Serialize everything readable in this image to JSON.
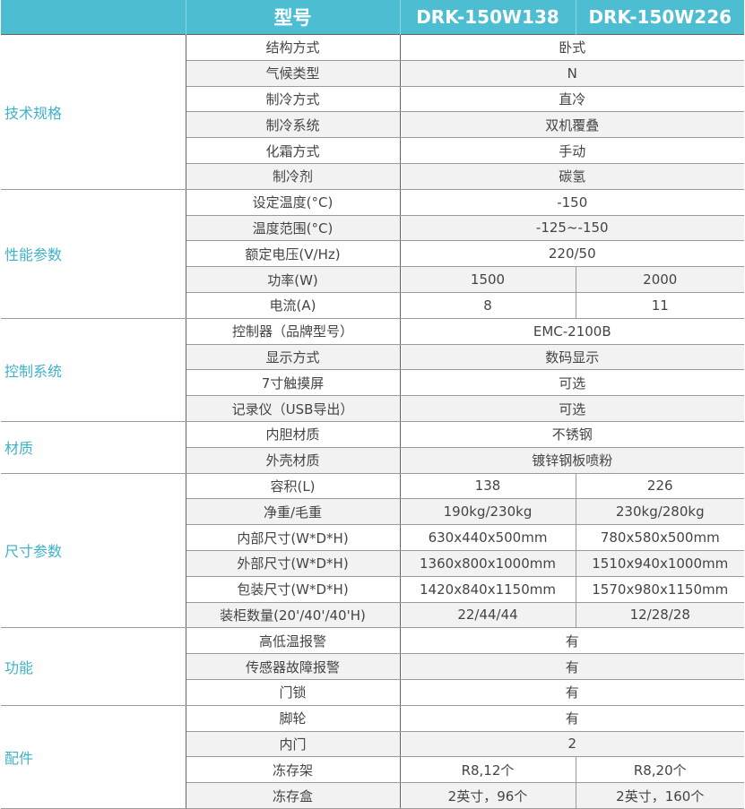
{
  "header": {
    "category": "",
    "label": "型号",
    "models": [
      "DRK-150W138",
      "DRK-150W226"
    ]
  },
  "colors": {
    "header_bg": "#4dbdd2",
    "category_text": "#3fb2c8",
    "stripe": "#f2f2f2"
  },
  "groups": [
    {
      "category": "技术规格",
      "rows": [
        {
          "label": "结构方式",
          "value": "卧式"
        },
        {
          "label": "气候类型",
          "value": "N"
        },
        {
          "label": "制冷方式",
          "value": "直冷"
        },
        {
          "label": "制冷系统",
          "value": "双机覆叠"
        },
        {
          "label": "化霜方式",
          "value": "手动"
        },
        {
          "label": "制冷剂",
          "value": "碳氢"
        }
      ]
    },
    {
      "category": "性能参数",
      "rows": [
        {
          "label": "设定温度(°C)",
          "value": "-150"
        },
        {
          "label": "温度范围(°C)",
          "value": "-125~-150"
        },
        {
          "label": "额定电压(V/Hz)",
          "value": "220/50"
        },
        {
          "label": "功率(W)",
          "values": [
            "1500",
            "2000"
          ]
        },
        {
          "label": "电流(A)",
          "values": [
            "8",
            "11"
          ]
        }
      ]
    },
    {
      "category": "控制系统",
      "rows": [
        {
          "label": "控制器（品牌型号）",
          "value": "EMC-2100B"
        },
        {
          "label": "显示方式",
          "value": "数码显示"
        },
        {
          "label": "7寸触摸屏",
          "value": "可选"
        },
        {
          "label": "记录仪（USB导出）",
          "value": "可选"
        }
      ]
    },
    {
      "category": "材质",
      "rows": [
        {
          "label": "内胆材质",
          "value": "不锈钢"
        },
        {
          "label": "外壳材质",
          "value": "镀锌钢板喷粉"
        }
      ]
    },
    {
      "category": "尺寸参数",
      "rows": [
        {
          "label": "容积(L)",
          "values": [
            "138",
            "226"
          ]
        },
        {
          "label": "净重/毛重",
          "values": [
            "190kg/230kg",
            "230kg/280kg"
          ]
        },
        {
          "label": "内部尺寸(W*D*H)",
          "values": [
            "630x440x500mm",
            "780x580x500mm"
          ]
        },
        {
          "label": "外部尺寸(W*D*H)",
          "values": [
            "1360x800x1000mm",
            "1510x940x1000mm"
          ]
        },
        {
          "label": "包装尺寸(W*D*H)",
          "values": [
            "1420x840x1150mm",
            "1570x980x1150mm"
          ]
        },
        {
          "label": "装柜数量(20'/40'/40'H)",
          "values": [
            "22/44/44",
            "12/28/28"
          ]
        }
      ]
    },
    {
      "category": "功能",
      "rows": [
        {
          "label": "高低温报警",
          "value": "有"
        },
        {
          "label": "传感器故障报警",
          "value": "有"
        },
        {
          "label": "门锁",
          "value": "有"
        }
      ]
    },
    {
      "category": "配件",
      "rows": [
        {
          "label": "脚轮",
          "value": "有"
        },
        {
          "label": "内门",
          "value": "2"
        },
        {
          "label": "冻存架",
          "values": [
            "R8,12个",
            "R8,20个"
          ]
        },
        {
          "label": "冻存盒",
          "values": [
            "2英寸，96个",
            "2英寸，160个"
          ]
        }
      ]
    }
  ]
}
